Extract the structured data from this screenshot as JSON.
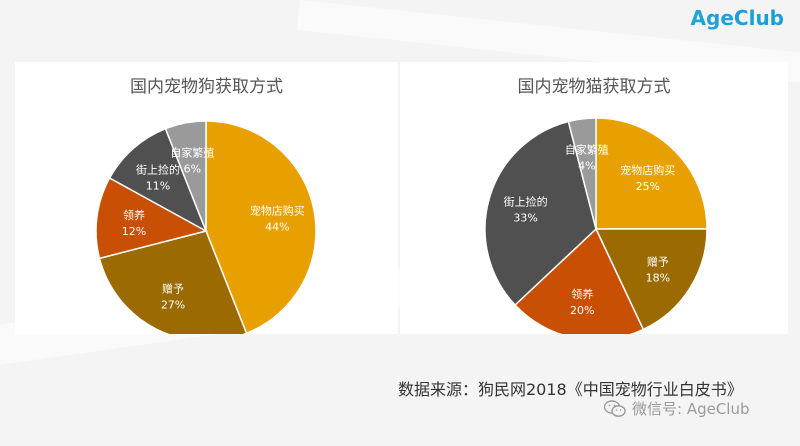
{
  "logo": {
    "part1": "Age",
    "part2": "Club"
  },
  "chart_data": [
    {
      "type": "pie",
      "title": "国内宠物狗获取方式",
      "slices": [
        {
          "label": "宠物店购买",
          "value": 44,
          "value_text": "44%",
          "color": "#e8a000"
        },
        {
          "label": "赠予",
          "value": 27,
          "value_text": "27%",
          "color": "#9b6a00"
        },
        {
          "label": "领养",
          "value": 12,
          "value_text": "12%",
          "color": "#c94f04"
        },
        {
          "label": "街上捡的",
          "value": 11,
          "value_text": "11%",
          "color": "#505050"
        },
        {
          "label": "自家繁殖",
          "value": 6,
          "value_text": "6%",
          "color": "#9a9a9a"
        }
      ]
    },
    {
      "type": "pie",
      "title": "国内宠物猫获取方式",
      "slices": [
        {
          "label": "宠物店购买",
          "value": 25,
          "value_text": "25%",
          "color": "#e8a000"
        },
        {
          "label": "赠予",
          "value": 18,
          "value_text": "18%",
          "color": "#9b6a00"
        },
        {
          "label": "领养",
          "value": 20,
          "value_text": "20%",
          "color": "#c94f04"
        },
        {
          "label": "街上捡的",
          "value": 33,
          "value_text": "33%",
          "color": "#505050"
        },
        {
          "label": "自家繁殖",
          "value": 4,
          "value_text": "4%",
          "color": "#9a9a9a"
        }
      ]
    }
  ],
  "source_text": "数据来源：狗民网2018《中国宠物行业白皮书》",
  "wechat_text": "微信号: AgeClub",
  "icons": {
    "wechat": "wechat-icon"
  }
}
